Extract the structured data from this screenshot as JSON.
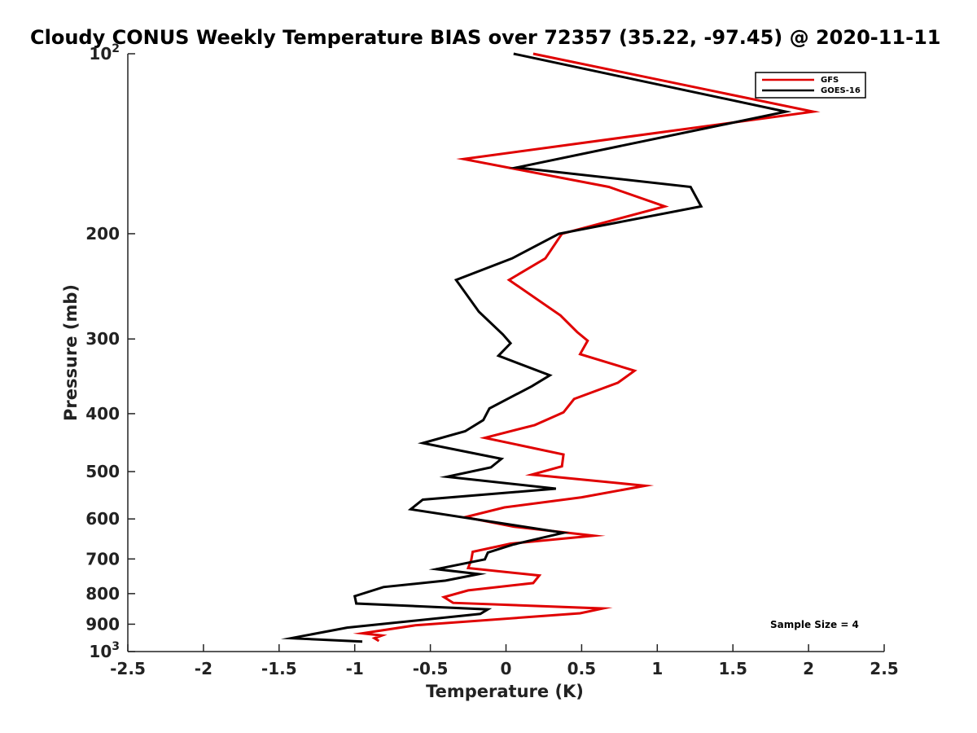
{
  "chart_data": {
    "type": "line",
    "title": "Cloudy CONUS Weekly Temperature BIAS over 72357 (35.22, -97.45) @ 2020-11-11",
    "xlabel": "Temperature (K)",
    "ylabel": "Pressure (mb)",
    "xlim": [
      -2.5,
      2.5
    ],
    "ylim": [
      100,
      1000
    ],
    "y_scale": "log",
    "y_reversed": true,
    "grid": false,
    "legend_position": "top-right",
    "x_ticks": [
      -2.5,
      -2,
      -1.5,
      -1,
      -0.5,
      0,
      0.5,
      1,
      1.5,
      2,
      2.5
    ],
    "x_tick_labels": [
      "-2.5",
      "-2",
      "-1.5",
      "-1",
      "-0.5",
      "0",
      "0.5",
      "1",
      "1.5",
      "2",
      "2.5"
    ],
    "y_ticks": [
      {
        "value": 100,
        "base": "10",
        "exp": "2"
      },
      {
        "value": 200,
        "label": "200"
      },
      {
        "value": 300,
        "label": "300"
      },
      {
        "value": 400,
        "label": "400"
      },
      {
        "value": 500,
        "label": "500"
      },
      {
        "value": 600,
        "label": "600"
      },
      {
        "value": 700,
        "label": "700"
      },
      {
        "value": 800,
        "label": "800"
      },
      {
        "value": 900,
        "label": "900"
      },
      {
        "value": 1000,
        "base": "10",
        "exp": "3"
      }
    ],
    "annotation": "Sample Size = 4",
    "series": [
      {
        "name": "GFS",
        "color": "#e00000",
        "points": [
          [
            0.18,
            100
          ],
          [
            2.03,
            125
          ],
          [
            -0.28,
            150
          ],
          [
            0.68,
            167
          ],
          [
            1.05,
            180
          ],
          [
            0.37,
            200
          ],
          [
            0.26,
            220
          ],
          [
            0.02,
            239
          ],
          [
            0.36,
            274
          ],
          [
            0.47,
            292
          ],
          [
            0.54,
            302
          ],
          [
            0.49,
            318
          ],
          [
            0.85,
            339
          ],
          [
            0.74,
            355
          ],
          [
            0.45,
            378
          ],
          [
            0.38,
            398
          ],
          [
            0.19,
            418
          ],
          [
            -0.14,
            439
          ],
          [
            0.38,
            468
          ],
          [
            0.37,
            490
          ],
          [
            0.17,
            506
          ],
          [
            0.92,
            528
          ],
          [
            0.5,
            552
          ],
          [
            -0.01,
            574
          ],
          [
            -0.27,
            596
          ],
          [
            0.05,
            618
          ],
          [
            0.58,
            640
          ],
          [
            0.03,
            660
          ],
          [
            -0.22,
            681
          ],
          [
            -0.23,
            703
          ],
          [
            -0.25,
            725
          ],
          [
            0.22,
            746
          ],
          [
            0.18,
            768
          ],
          [
            -0.25,
            790
          ],
          [
            -0.41,
            811
          ],
          [
            -0.35,
            829
          ],
          [
            0.64,
            847
          ],
          [
            0.49,
            863
          ],
          [
            -0.6,
            904
          ],
          [
            -0.95,
            932
          ],
          [
            -0.82,
            940
          ],
          [
            -0.87,
            950
          ],
          [
            -0.84,
            960
          ]
        ]
      },
      {
        "name": "GOES-16",
        "color": "#000000",
        "points": [
          [
            0.05,
            100
          ],
          [
            1.85,
            125
          ],
          [
            0.07,
            155
          ],
          [
            1.22,
            167
          ],
          [
            1.29,
            180
          ],
          [
            0.35,
            200
          ],
          [
            0.04,
            220
          ],
          [
            -0.33,
            239
          ],
          [
            -0.18,
            270
          ],
          [
            -0.02,
            295
          ],
          [
            0.03,
            305
          ],
          [
            -0.05,
            320
          ],
          [
            0.29,
            345
          ],
          [
            0.17,
            360
          ],
          [
            -0.11,
            392
          ],
          [
            -0.15,
            410
          ],
          [
            -0.27,
            428
          ],
          [
            -0.55,
            448
          ],
          [
            -0.03,
            476
          ],
          [
            -0.1,
            492
          ],
          [
            -0.39,
            510
          ],
          [
            0.33,
            534
          ],
          [
            -0.55,
            557
          ],
          [
            -0.63,
            578
          ],
          [
            0.38,
            633
          ],
          [
            0.05,
            662
          ],
          [
            -0.12,
            683
          ],
          [
            -0.14,
            701
          ],
          [
            -0.46,
            728
          ],
          [
            -0.18,
            742
          ],
          [
            -0.4,
            761
          ],
          [
            -0.81,
            780
          ],
          [
            -1.0,
            808
          ],
          [
            -0.99,
            831
          ],
          [
            -0.12,
            850
          ],
          [
            -0.17,
            865
          ],
          [
            -1.05,
            912
          ],
          [
            -1.42,
            950
          ],
          [
            -0.95,
            962
          ]
        ]
      }
    ]
  }
}
